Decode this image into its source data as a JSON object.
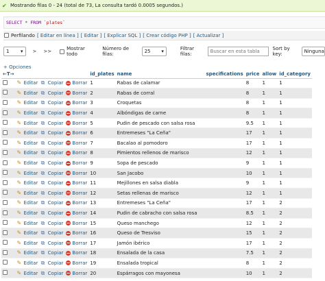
{
  "success_message": "Mostrando filas 0 - 24 (total de 73, La consulta tardó 0.0005 segundos.)",
  "sql": {
    "kw1": "SELECT",
    "op": " * ",
    "kw2": "FROM",
    "table": " `plates`"
  },
  "toolbar": {
    "profiling": "Perfilando",
    "links": [
      "[ Editar en línea ]",
      "[ Editar ]",
      "[ Explicar SQL ]",
      "[ Crear código PHP ]",
      "[ Actualizar ]"
    ]
  },
  "nav": {
    "page": "1",
    "next": ">",
    "last": ">>",
    "show_all": "Mostrar todo",
    "rows_label": "Número de filas:",
    "rows_value": "25",
    "filter_label": "Filtrar filas:",
    "filter_placeholder": "Buscar en esta tabla",
    "sort_label": "Sort by key:",
    "sort_value": "Ninguna"
  },
  "options_label": "+ Opciones",
  "headers": {
    "arrows": "←T→",
    "id_plates": "id_plates",
    "name": "name",
    "specifications": "specifications",
    "price": "price",
    "allow": "allow",
    "id_category": "id_category"
  },
  "actions": {
    "edit": "Editar",
    "copy": "Copiar",
    "delete": "Borrar"
  },
  "rows": [
    {
      "id": "1",
      "name": "Rabas de calamar",
      "spec": "",
      "price": "8",
      "allow": "1",
      "cat": "1"
    },
    {
      "id": "2",
      "name": "Rabas de corral",
      "spec": "",
      "price": "8",
      "allow": "1",
      "cat": "1"
    },
    {
      "id": "3",
      "name": "Croquetas",
      "spec": "",
      "price": "8",
      "allow": "1",
      "cat": "1"
    },
    {
      "id": "4",
      "name": "Albóndigas de carne",
      "spec": "",
      "price": "8",
      "allow": "1",
      "cat": "1"
    },
    {
      "id": "5",
      "name": "Pudin de pescado con salsa rosa",
      "spec": "",
      "price": "9.5",
      "allow": "1",
      "cat": "1"
    },
    {
      "id": "6",
      "name": "Entremeses \"La Ceña\"",
      "spec": "",
      "price": "17",
      "allow": "1",
      "cat": "1"
    },
    {
      "id": "7",
      "name": "Bacalao al pomodoro",
      "spec": "",
      "price": "17",
      "allow": "1",
      "cat": "1"
    },
    {
      "id": "8",
      "name": "Pimientos rellenos de marisco",
      "spec": "",
      "price": "12",
      "allow": "1",
      "cat": "1"
    },
    {
      "id": "9",
      "name": "Sopa de pescado",
      "spec": "",
      "price": "9",
      "allow": "1",
      "cat": "1"
    },
    {
      "id": "10",
      "name": "San Jacobo",
      "spec": "",
      "price": "10",
      "allow": "1",
      "cat": "1"
    },
    {
      "id": "11",
      "name": "Mejillones en salsa diabla",
      "spec": "",
      "price": "9",
      "allow": "1",
      "cat": "1"
    },
    {
      "id": "12",
      "name": "Setas rellenas de marisco",
      "spec": "",
      "price": "12",
      "allow": "1",
      "cat": "1"
    },
    {
      "id": "13",
      "name": "Entremeses \"La Ceña\"",
      "spec": "",
      "price": "17",
      "allow": "1",
      "cat": "2"
    },
    {
      "id": "14",
      "name": "Pudin de cabracho con salsa rosa",
      "spec": "",
      "price": "8.5",
      "allow": "1",
      "cat": "2"
    },
    {
      "id": "15",
      "name": "Queso manchego",
      "spec": "",
      "price": "12",
      "allow": "1",
      "cat": "2"
    },
    {
      "id": "16",
      "name": "Queso de Tresviso",
      "spec": "",
      "price": "15",
      "allow": "1",
      "cat": "2"
    },
    {
      "id": "17",
      "name": "Jamón ibérico",
      "spec": "",
      "price": "17",
      "allow": "1",
      "cat": "2"
    },
    {
      "id": "18",
      "name": "Ensalada de la casa",
      "spec": "",
      "price": "7.5",
      "allow": "1",
      "cat": "2"
    },
    {
      "id": "19",
      "name": "Ensalada tropical",
      "spec": "",
      "price": "8",
      "allow": "1",
      "cat": "2"
    },
    {
      "id": "20",
      "name": "Espárragos con mayonesa",
      "spec": "",
      "price": "10",
      "allow": "1",
      "cat": "2"
    }
  ],
  "colors": {
    "link": "#235a81",
    "success_bg": "#ecf7d5",
    "delete": "#d43b2f"
  }
}
